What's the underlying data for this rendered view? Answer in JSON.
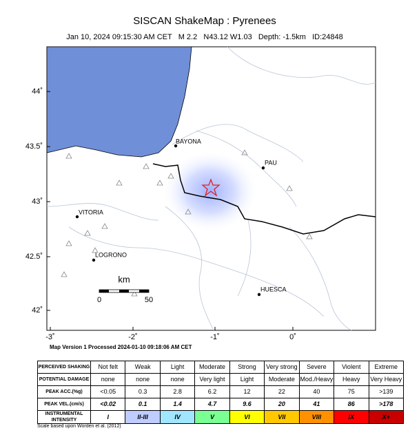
{
  "header": {
    "title": "SISCAN ShakeMap : Pyrenees",
    "subtitle": "Jan 10, 2024 09:15:30 AM CET   M 2.2   N43.12 W1.03   Depth: -1.5km   ID:24848"
  },
  "map": {
    "lon_labels": [
      "-3˚",
      "-2˚",
      "-1˚",
      "0˚"
    ],
    "lat_labels": [
      "44˚",
      "43.5˚",
      "43˚",
      "42.5˚",
      "42˚"
    ],
    "cities": [
      "BAYONA",
      "PAU",
      "VITORIA",
      "LOGRONO",
      "HUESCA"
    ],
    "scale": {
      "unit": "km",
      "labels": [
        "0",
        "50"
      ]
    }
  },
  "processed": "Map Version 1 Processed 2024-01-10 09:18:06 AM CET",
  "table": {
    "rows": [
      [
        "PERCEIVED SHAKING",
        "Not felt",
        "Weak",
        "Light",
        "Moderate",
        "Strong",
        "Very strong",
        "Severe",
        "Violent",
        "Extreme"
      ],
      [
        "POTENTIAL DAMAGE",
        "none",
        "none",
        "none",
        "Very light",
        "Light",
        "Moderate",
        "Mod./Heavy",
        "Heavy",
        "Very Heavy"
      ],
      [
        "PEAK ACC.(%g)",
        "<0.05",
        "0.3",
        "2.8",
        "6.2",
        "12",
        "22",
        "40",
        "75",
        ">139"
      ],
      [
        "PEAK VEL.(cm/s)",
        "<0.02",
        "0.1",
        "1.4",
        "4.7",
        "9.6",
        "20",
        "41",
        "86",
        ">178"
      ],
      [
        "INSTRUMENTAL INTENSITY",
        "I",
        "II-III",
        "IV",
        "V",
        "VI",
        "VII",
        "VIII",
        "IX",
        "X+"
      ]
    ],
    "colors": [
      "#ffffff",
      "#bfccff",
      "#a0e6ff",
      "#7aff93",
      "#ffff00",
      "#ffc800",
      "#ff9100",
      "#ff0000",
      "#c80000"
    ]
  },
  "footnote": "Scale based upon Worden et al. (2012)"
}
